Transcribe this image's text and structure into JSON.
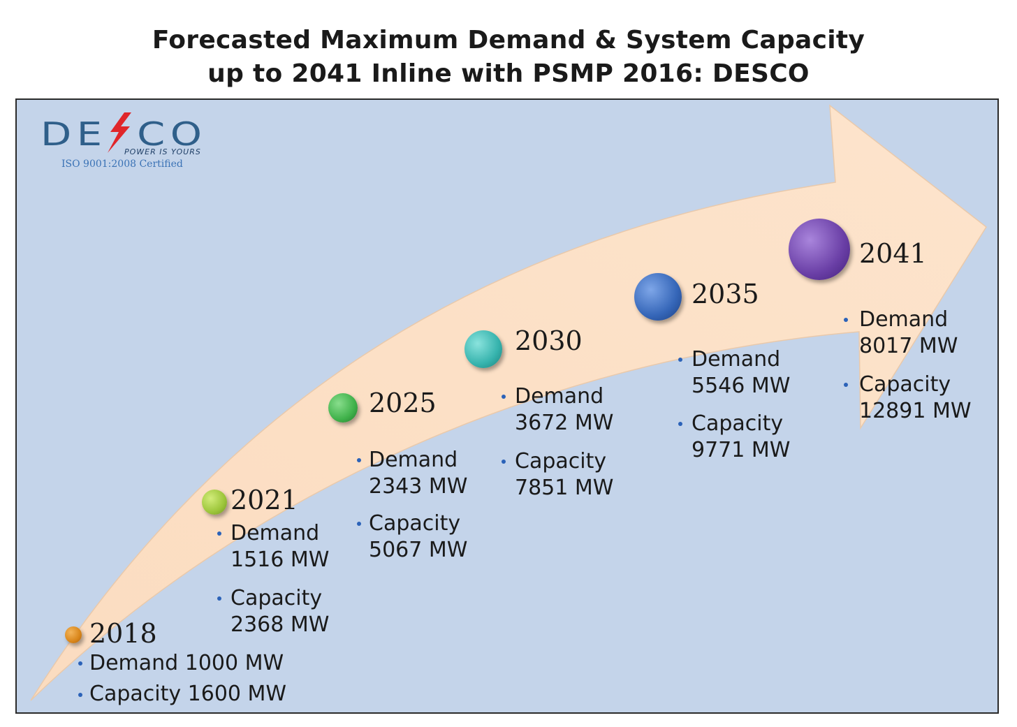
{
  "title": {
    "line1": "Forecasted Maximum Demand & System Capacity",
    "line2": "up to 2041 Inline with PSMP 2016: DESCO"
  },
  "logo": {
    "text_left": "DE",
    "text_right": "CO",
    "tagline": "POWER IS YOURS",
    "certification": "ISO 9001:2008 Certified"
  },
  "colors": {
    "panel_background": "#c4d4ea",
    "arrow_fill": "#fbe0c8",
    "bullet": "#2b62b8",
    "logo_blue": "#2f5f8a",
    "logo_bolt": "#e0262a"
  },
  "milestones": [
    {
      "year": "2018",
      "demand": "Demand 1000 MW",
      "capacity": "Capacity 1600 MW",
      "color": "#d9861a"
    },
    {
      "year": "2021",
      "demand_l1": "Demand",
      "demand_l2": "1516 MW",
      "capacity_l1": "Capacity",
      "capacity_l2": "2368 MW",
      "color": "#9cc53a"
    },
    {
      "year": "2025",
      "demand_l1": "Demand",
      "demand_l2": "2343 MW",
      "capacity_l1": "Capacity",
      "capacity_l2": "5067 MW",
      "color": "#3fb14a"
    },
    {
      "year": "2030",
      "demand_l1": "Demand",
      "demand_l2": "3672 MW",
      "capacity_l1": "Capacity",
      "capacity_l2": "7851 MW",
      "color": "#36b3ad"
    },
    {
      "year": "2035",
      "demand_l1": "Demand",
      "demand_l2": "5546 MW",
      "capacity_l1": "Capacity",
      "capacity_l2": "9771 MW",
      "color": "#3566b8"
    },
    {
      "year": "2041",
      "demand_l1": "Demand",
      "demand_l2": "8017 MW",
      "capacity_l1": "Capacity",
      "capacity_l2": "12891 MW",
      "color": "#6a3fa6"
    }
  ]
}
